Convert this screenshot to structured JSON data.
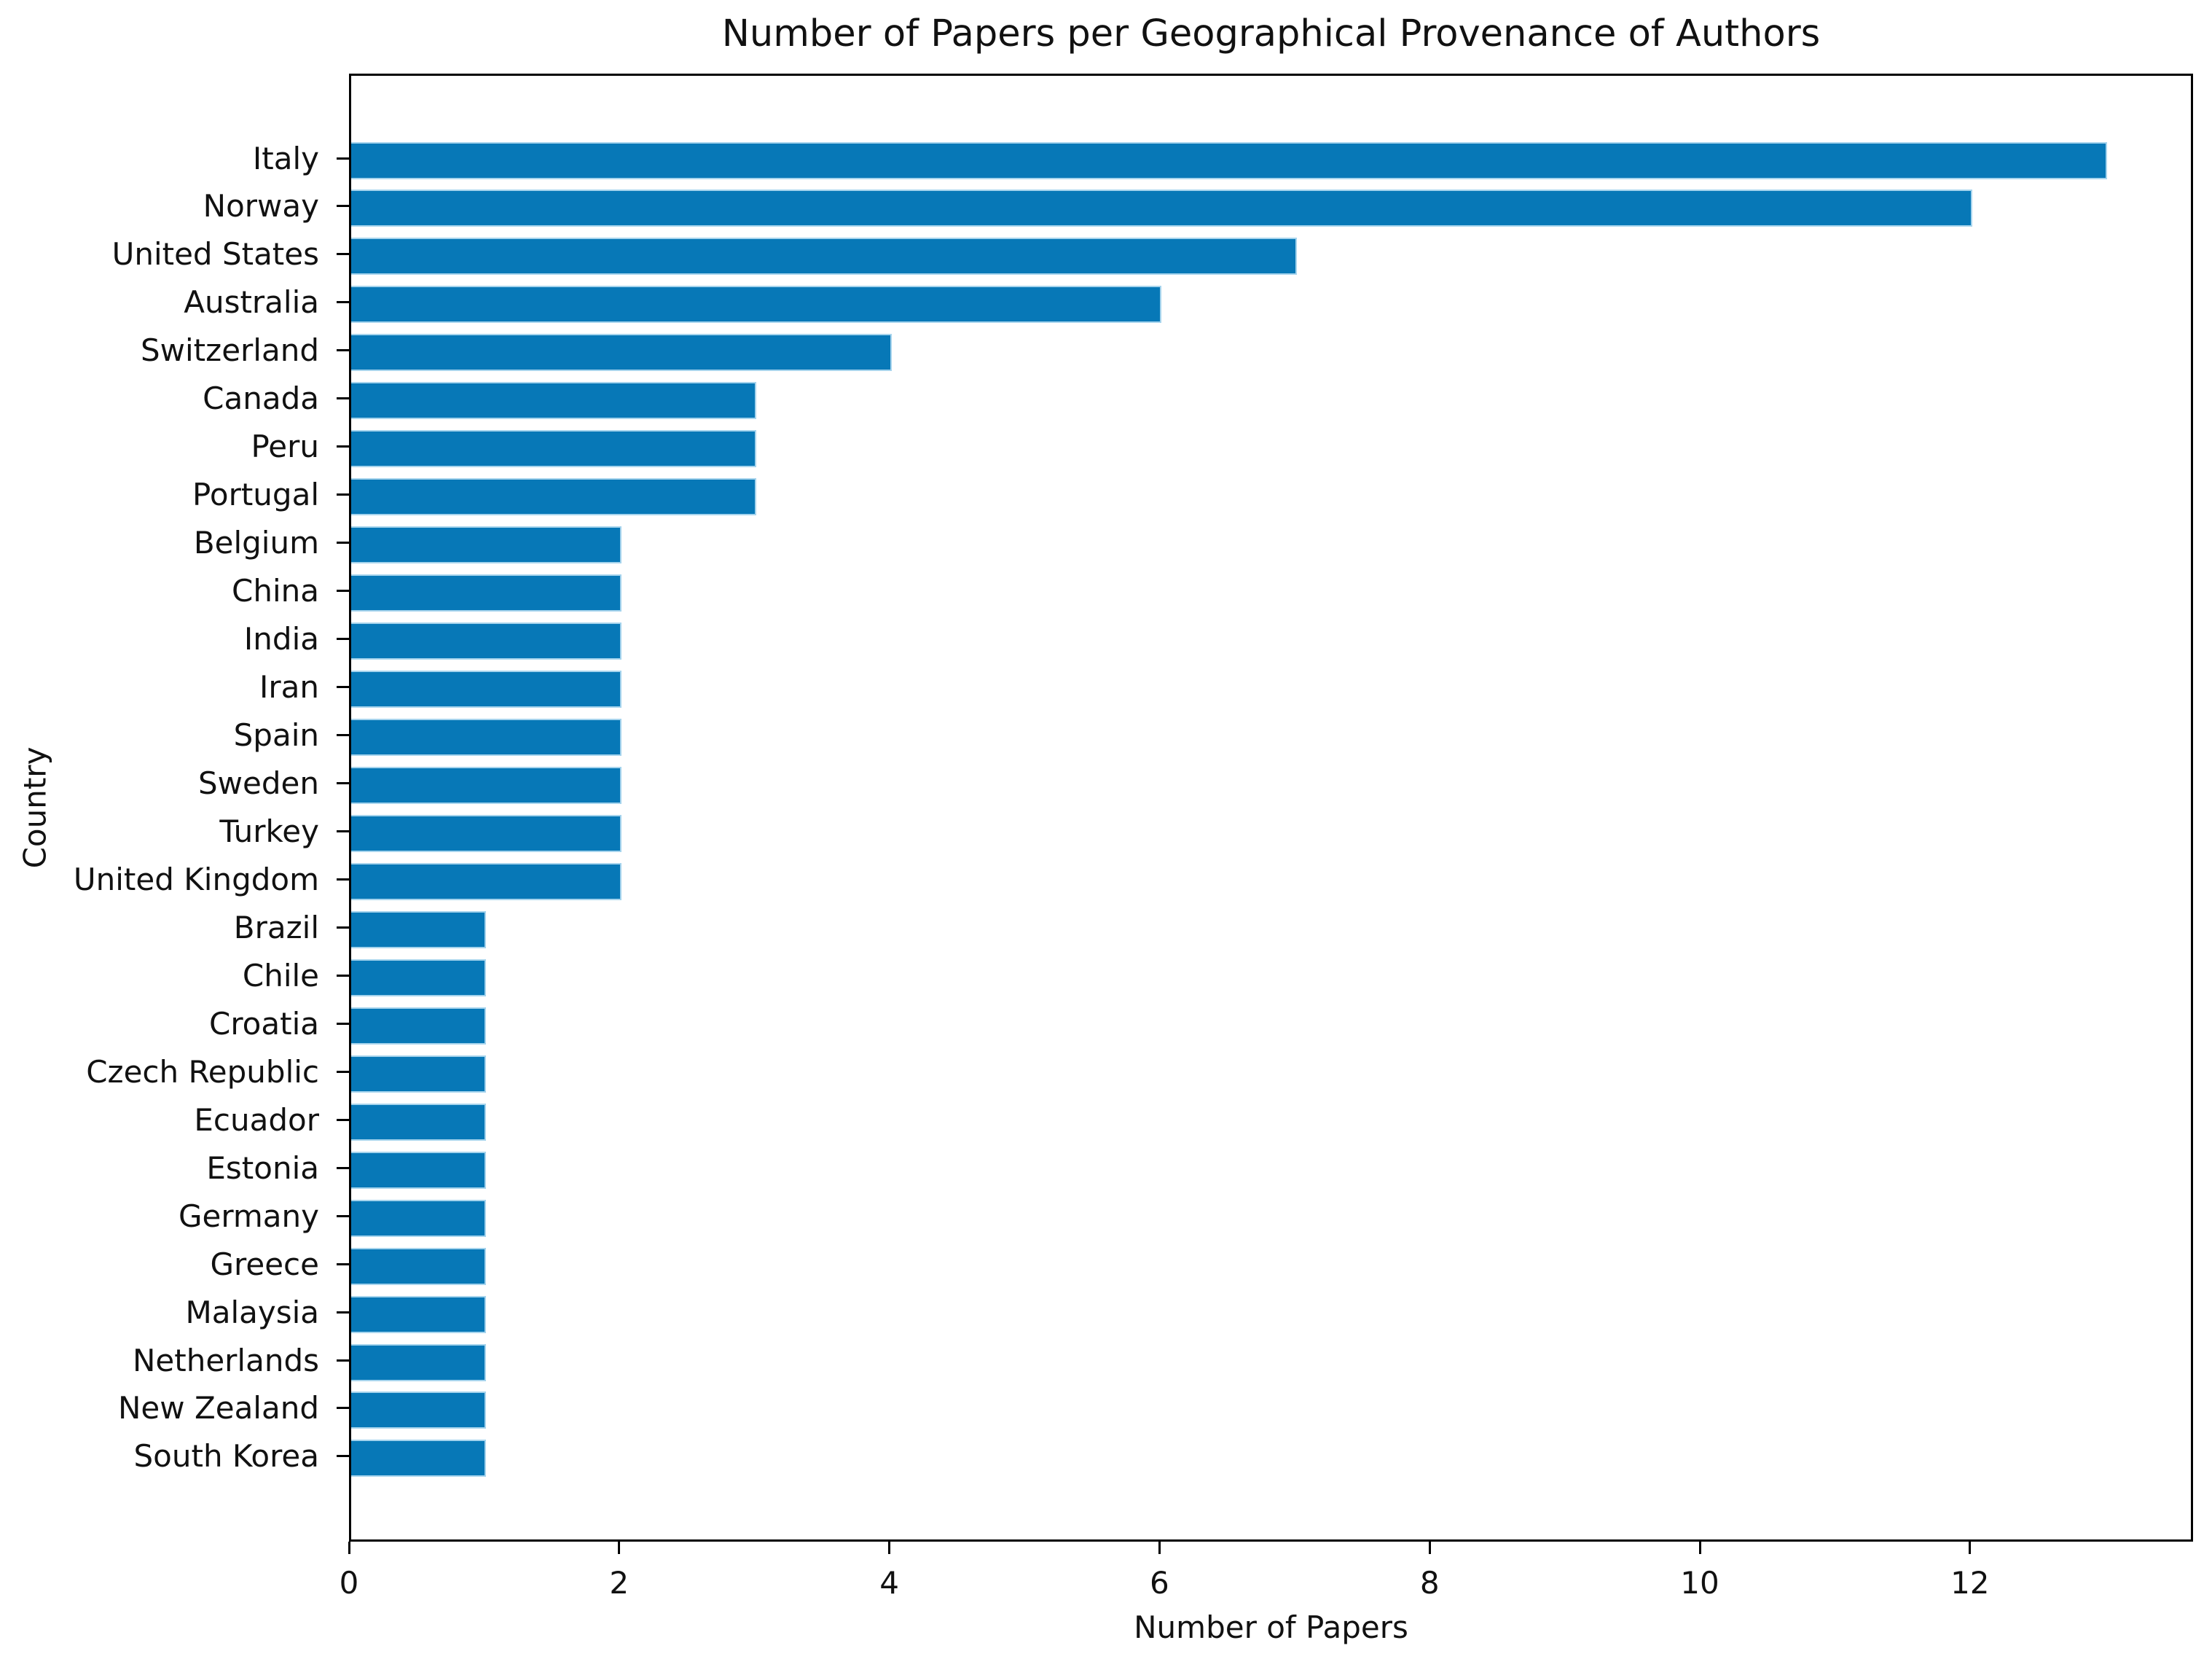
{
  "chart_data": {
    "type": "bar",
    "orientation": "horizontal",
    "title": "Number of Papers per Geographical Provenance of Authors",
    "xlabel": "Number of Papers",
    "ylabel": "Country",
    "categories": [
      "Italy",
      "Norway",
      "United States",
      "Australia",
      "Switzerland",
      "Canada",
      "Peru",
      "Portugal",
      "Belgium",
      "China",
      "India",
      "Iran",
      "Spain",
      "Sweden",
      "Turkey",
      "United Kingdom",
      "Brazil",
      "Chile",
      "Croatia",
      "Czech Republic",
      "Ecuador",
      "Estonia",
      "Germany",
      "Greece",
      "Malaysia",
      "Netherlands",
      "New Zealand",
      "South Korea"
    ],
    "values": [
      13,
      12,
      7,
      6,
      4,
      3,
      3,
      3,
      2,
      2,
      2,
      2,
      2,
      2,
      2,
      2,
      1,
      1,
      1,
      1,
      1,
      1,
      1,
      1,
      1,
      1,
      1,
      1
    ],
    "x_ticks": [
      0,
      2,
      4,
      6,
      8,
      10,
      12
    ],
    "xlim": [
      0,
      13.65
    ],
    "grid": false,
    "legend": null,
    "bar_color": "#0778b7",
    "bar_edge_color": "#a6d4ed",
    "axis_color": "#000000"
  }
}
